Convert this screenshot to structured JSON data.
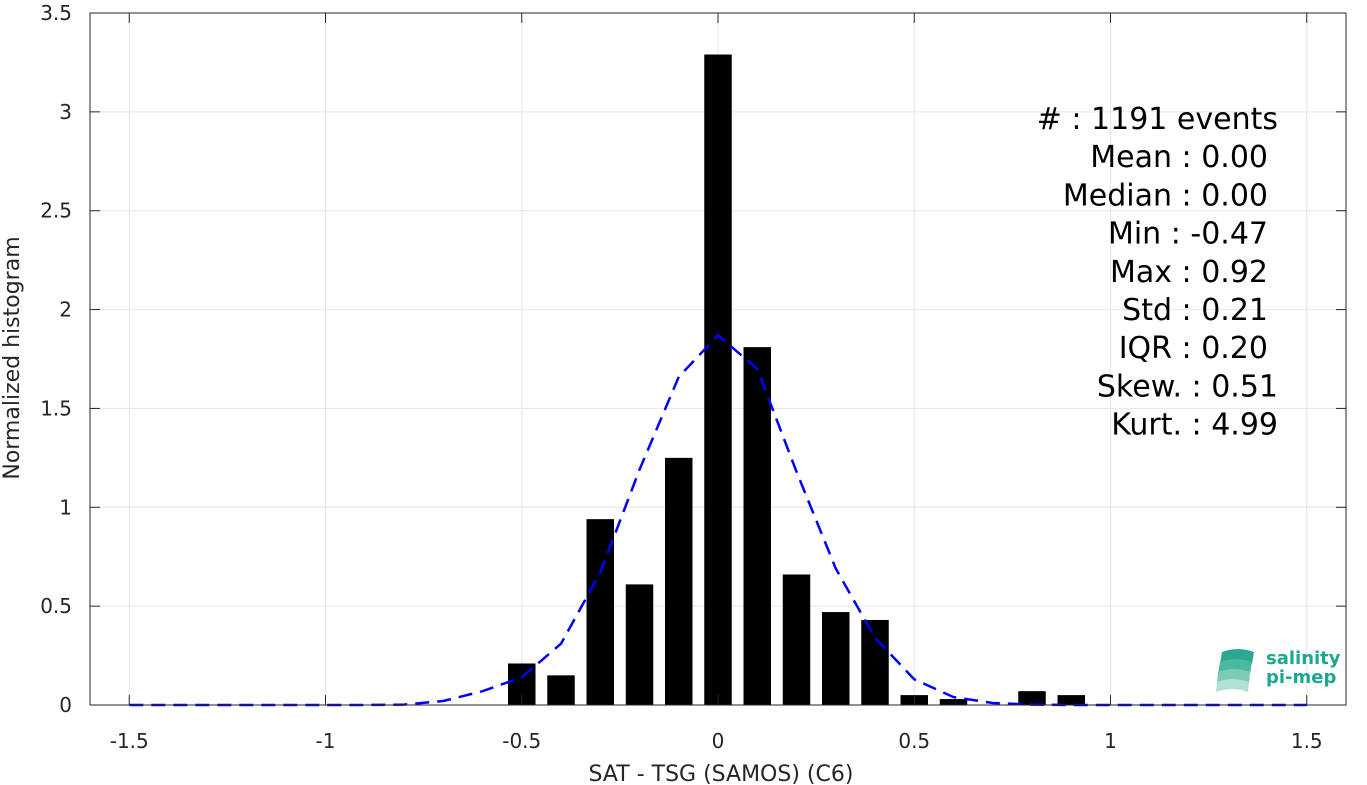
{
  "chart_data": {
    "type": "bar",
    "xlabel": "SAT - TSG (SAMOS) (C6)",
    "ylabel": "Normalized histogram",
    "xlim": [
      -1.6,
      1.6
    ],
    "ylim": [
      0,
      3.5
    ],
    "xticks": [
      -1.5,
      -1,
      -0.5,
      0,
      0.5,
      1,
      1.5
    ],
    "xtick_labels": [
      "-1.5",
      "-1",
      "-0.5",
      "0",
      "0.5",
      "1",
      "1.5"
    ],
    "yticks": [
      0,
      0.5,
      1,
      1.5,
      2,
      2.5,
      3,
      3.5
    ],
    "ytick_labels": [
      "0",
      "0.5",
      "1",
      "1.5",
      "2",
      "2.5",
      "3",
      "3.5"
    ],
    "grid": true,
    "bin_width": 0.1,
    "bar_width": 0.07,
    "bars": {
      "x": [
        -0.5,
        -0.4,
        -0.3,
        -0.2,
        -0.1,
        0.0,
        0.1,
        0.2,
        0.3,
        0.4,
        0.5,
        0.6,
        0.7,
        0.8,
        0.9
      ],
      "values": [
        0.21,
        0.15,
        0.94,
        0.61,
        1.25,
        3.29,
        1.81,
        0.66,
        0.47,
        0.43,
        0.05,
        0.03,
        0.0,
        0.07,
        0.05
      ],
      "color": "#000000"
    },
    "series": [
      {
        "style": "dashed",
        "color": "#0000ff",
        "x": [
          -1.5,
          -1.4,
          -1.3,
          -1.2,
          -1.1,
          -1.0,
          -0.9,
          -0.8,
          -0.7,
          -0.6,
          -0.5,
          -0.4,
          -0.3,
          -0.2,
          -0.1,
          0.0,
          0.1,
          0.2,
          0.3,
          0.4,
          0.5,
          0.6,
          0.7,
          0.8,
          0.9,
          1.0,
          1.1,
          1.2,
          1.3,
          1.4,
          1.5
        ],
        "values": [
          0,
          0,
          0,
          0,
          0,
          0,
          0,
          0.002,
          0.02,
          0.07,
          0.14,
          0.31,
          0.67,
          1.19,
          1.66,
          1.87,
          1.7,
          1.18,
          0.69,
          0.34,
          0.13,
          0.04,
          0.01,
          0.002,
          0,
          0,
          0,
          0,
          0,
          0,
          0
        ]
      }
    ],
    "annotations": [
      "#  : 1191 events",
      "Mean : 0.00",
      "Median : 0.00",
      "Min : -0.47",
      "Max : 0.92",
      "Std : 0.21",
      "IQR : 0.20",
      "Skew. : 0.51",
      "Kurt. : 4.99"
    ]
  },
  "logo": {
    "line1": "salinity",
    "line2": "pi-mep",
    "color": "#1aa88f"
  }
}
